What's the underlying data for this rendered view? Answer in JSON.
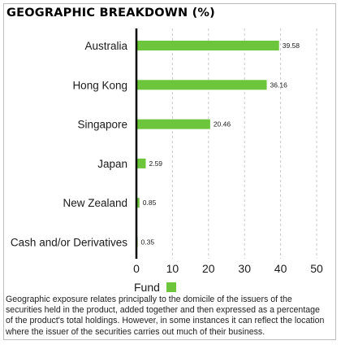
{
  "chart_data": {
    "type": "bar",
    "orientation": "horizontal",
    "title": "GEOGRAPHIC BREAKDOWN (%)",
    "categories": [
      "Australia",
      "Hong Kong",
      "Singapore",
      "Japan",
      "New Zealand",
      "Cash and/or Derivatives"
    ],
    "series": [
      {
        "name": "Fund",
        "values": [
          39.58,
          36.16,
          20.46,
          2.59,
          0.85,
          0.35
        ],
        "color": "#6cc53a"
      }
    ],
    "data_labels": [
      "39.58",
      "36.16",
      "20.46",
      "2.59",
      "0.85",
      "0.35"
    ],
    "xlim": [
      0,
      50
    ],
    "xticks": [
      0,
      10,
      20,
      30,
      40,
      50
    ],
    "grid": "vertical dashed",
    "legend": "bottom"
  },
  "footnote": "Geographic exposure relates principally to the domicile of the issuers of the securities held in the product, added together and then expressed as a percentage of the product's total holdings. However, in some instances it can reflect the location where the issuer of the securities carries out much of their business."
}
